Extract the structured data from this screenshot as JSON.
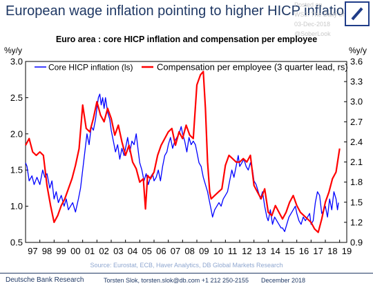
{
  "headline": "European wage inflation pointing to higher HICP inflation",
  "watermark": {
    "line1": "Posted on",
    "line2": "WSJ: The Daily Shot",
    "line3": "03-Dec-2018",
    "line4": "@SoberLook"
  },
  "logo_icon": "deutsche-bank-slash-logo",
  "footer": {
    "org": "Deutsche Bank Research",
    "contact": "Torsten Slok, torsten.slok@db.com  +1 212 250-2155",
    "date": "December 2018"
  },
  "colors": {
    "headline": "#1f3864",
    "core_line": "#0000ff",
    "comp_line": "#ff0000",
    "source": "#8ea6cf"
  },
  "chart_data": {
    "type": "line",
    "title": "Euro area : core HICP inflation and compensation per employee",
    "source": "Source: Eurostat, ECB, Haver Analytics, DB Global Markets Research",
    "left_axis": {
      "label": "%y/y",
      "range": [
        0.5,
        3.0
      ],
      "ticks": [
        "0.5",
        "1.0",
        "1.5",
        "2.0",
        "2.5",
        "3.0"
      ]
    },
    "right_axis": {
      "label": "%y/y",
      "range": [
        0.9,
        3.6
      ],
      "ticks": [
        "0.9",
        "1.2",
        "1.5",
        "1.8",
        "2.1",
        "2.4",
        "2.7",
        "3.0",
        "3.3",
        "3.6"
      ]
    },
    "x_axis": {
      "range": [
        1997,
        2019.5
      ],
      "ticks": [
        "97",
        "98",
        "99",
        "00",
        "01",
        "02",
        "03",
        "04",
        "05",
        "06",
        "07",
        "08",
        "09",
        "10",
        "11",
        "12",
        "13",
        "14",
        "15",
        "16",
        "17",
        "18",
        "19"
      ]
    },
    "grid": false,
    "legend": "top",
    "series": [
      {
        "name": "Core HICP inflation (ls)",
        "axis": "left",
        "points": [
          [
            1997.0,
            1.6
          ],
          [
            1997.1,
            1.55
          ],
          [
            1997.25,
            1.35
          ],
          [
            1997.45,
            1.42
          ],
          [
            1997.6,
            1.3
          ],
          [
            1997.8,
            1.4
          ],
          [
            1998.0,
            1.3
          ],
          [
            1998.2,
            1.5
          ],
          [
            1998.35,
            1.4
          ],
          [
            1998.5,
            1.45
          ],
          [
            1998.7,
            1.25
          ],
          [
            1998.85,
            1.35
          ],
          [
            1999.0,
            1.1
          ],
          [
            1999.15,
            1.2
          ],
          [
            1999.3,
            1.05
          ],
          [
            1999.5,
            1.15
          ],
          [
            1999.7,
            1.0
          ],
          [
            1999.85,
            1.1
          ],
          [
            2000.0,
            0.95
          ],
          [
            2000.15,
            1.0
          ],
          [
            2000.3,
            1.05
          ],
          [
            2000.5,
            0.92
          ],
          [
            2000.7,
            1.1
          ],
          [
            2000.85,
            1.25
          ],
          [
            2001.0,
            1.5
          ],
          [
            2001.15,
            1.75
          ],
          [
            2001.3,
            2.0
          ],
          [
            2001.45,
            1.85
          ],
          [
            2001.6,
            2.1
          ],
          [
            2001.75,
            2.05
          ],
          [
            2001.9,
            2.2
          ],
          [
            2002.0,
            2.35
          ],
          [
            2002.1,
            2.5
          ],
          [
            2002.2,
            2.55
          ],
          [
            2002.3,
            2.4
          ],
          [
            2002.4,
            2.5
          ],
          [
            2002.5,
            2.35
          ],
          [
            2002.6,
            2.5
          ],
          [
            2002.75,
            2.3
          ],
          [
            2002.9,
            2.2
          ],
          [
            2003.0,
            2.05
          ],
          [
            2003.15,
            1.9
          ],
          [
            2003.3,
            1.75
          ],
          [
            2003.45,
            1.85
          ],
          [
            2003.6,
            1.65
          ],
          [
            2003.75,
            1.8
          ],
          [
            2003.9,
            1.7
          ],
          [
            2004.0,
            1.8
          ],
          [
            2004.15,
            1.95
          ],
          [
            2004.3,
            1.75
          ],
          [
            2004.45,
            1.9
          ],
          [
            2004.6,
            1.85
          ],
          [
            2004.75,
            2.0
          ],
          [
            2004.9,
            1.75
          ],
          [
            2005.0,
            1.6
          ],
          [
            2005.15,
            1.5
          ],
          [
            2005.3,
            1.35
          ],
          [
            2005.45,
            1.45
          ],
          [
            2005.6,
            1.3
          ],
          [
            2005.75,
            1.4
          ],
          [
            2005.9,
            1.45
          ],
          [
            2006.0,
            1.35
          ],
          [
            2006.15,
            1.4
          ],
          [
            2006.3,
            1.5
          ],
          [
            2006.45,
            1.35
          ],
          [
            2006.6,
            1.55
          ],
          [
            2006.75,
            1.7
          ],
          [
            2006.9,
            1.75
          ],
          [
            2007.0,
            1.85
          ],
          [
            2007.15,
            1.95
          ],
          [
            2007.3,
            1.8
          ],
          [
            2007.45,
            1.9
          ],
          [
            2007.6,
            1.95
          ],
          [
            2007.75,
            2.0
          ],
          [
            2007.9,
            2.1
          ],
          [
            2008.0,
            2.0
          ],
          [
            2008.15,
            1.9
          ],
          [
            2008.3,
            1.75
          ],
          [
            2008.45,
            1.95
          ],
          [
            2008.6,
            1.85
          ],
          [
            2008.75,
            1.9
          ],
          [
            2008.9,
            1.85
          ],
          [
            2009.0,
            1.75
          ],
          [
            2009.15,
            1.6
          ],
          [
            2009.3,
            1.55
          ],
          [
            2009.45,
            1.4
          ],
          [
            2009.6,
            1.3
          ],
          [
            2009.75,
            1.2
          ],
          [
            2009.9,
            1.05
          ],
          [
            2010.0,
            0.95
          ],
          [
            2010.1,
            0.85
          ],
          [
            2010.25,
            0.95
          ],
          [
            2010.4,
            1.0
          ],
          [
            2010.55,
            1.05
          ],
          [
            2010.7,
            1.0
          ],
          [
            2010.85,
            1.1
          ],
          [
            2011.0,
            1.15
          ],
          [
            2011.15,
            1.2
          ],
          [
            2011.3,
            1.35
          ],
          [
            2011.45,
            1.5
          ],
          [
            2011.6,
            1.4
          ],
          [
            2011.75,
            1.55
          ],
          [
            2011.9,
            1.7
          ],
          [
            2012.0,
            1.55
          ],
          [
            2012.15,
            1.6
          ],
          [
            2012.3,
            1.65
          ],
          [
            2012.45,
            1.55
          ],
          [
            2012.6,
            1.5
          ],
          [
            2012.75,
            1.6
          ],
          [
            2012.9,
            1.5
          ],
          [
            2013.0,
            1.35
          ],
          [
            2013.15,
            1.3
          ],
          [
            2013.3,
            1.2
          ],
          [
            2013.45,
            1.1
          ],
          [
            2013.6,
            1.2
          ],
          [
            2013.75,
            1.0
          ],
          [
            2013.9,
            0.85
          ],
          [
            2014.0,
            0.8
          ],
          [
            2014.15,
            0.95
          ],
          [
            2014.3,
            0.75
          ],
          [
            2014.45,
            0.85
          ],
          [
            2014.6,
            0.8
          ],
          [
            2014.75,
            0.75
          ],
          [
            2014.9,
            0.7
          ],
          [
            2015.0,
            0.7
          ],
          [
            2015.15,
            0.65
          ],
          [
            2015.3,
            0.75
          ],
          [
            2015.45,
            0.85
          ],
          [
            2015.6,
            0.9
          ],
          [
            2015.75,
            0.95
          ],
          [
            2015.9,
            1.0
          ],
          [
            2016.0,
            0.9
          ],
          [
            2016.15,
            0.8
          ],
          [
            2016.3,
            0.75
          ],
          [
            2016.45,
            0.85
          ],
          [
            2016.6,
            0.8
          ],
          [
            2016.75,
            0.85
          ],
          [
            2016.9,
            0.9
          ],
          [
            2017.0,
            0.75
          ],
          [
            2017.15,
            0.8
          ],
          [
            2017.3,
            1.05
          ],
          [
            2017.45,
            1.2
          ],
          [
            2017.6,
            1.15
          ],
          [
            2017.75,
            0.9
          ],
          [
            2017.9,
            0.95
          ],
          [
            2018.0,
            1.0
          ],
          [
            2018.15,
            0.85
          ],
          [
            2018.3,
            1.1
          ],
          [
            2018.45,
            0.95
          ],
          [
            2018.6,
            1.2
          ],
          [
            2018.75,
            1.1
          ],
          [
            2018.85,
            0.95
          ],
          [
            2018.92,
            1.05
          ]
        ]
      },
      {
        "name": "Compensation per employee (3 quarter lead, rs)",
        "axis": "right",
        "points": [
          [
            1997.0,
            2.35
          ],
          [
            1997.25,
            2.45
          ],
          [
            1997.5,
            2.25
          ],
          [
            1997.75,
            2.2
          ],
          [
            1998.0,
            2.25
          ],
          [
            1998.25,
            2.2
          ],
          [
            1998.5,
            1.75
          ],
          [
            1998.75,
            1.45
          ],
          [
            1999.0,
            1.2
          ],
          [
            1999.25,
            1.3
          ],
          [
            1999.5,
            1.45
          ],
          [
            1999.75,
            1.55
          ],
          [
            2000.0,
            1.7
          ],
          [
            2000.25,
            1.85
          ],
          [
            2000.5,
            2.05
          ],
          [
            2000.75,
            2.3
          ],
          [
            2001.0,
            2.95
          ],
          [
            2001.25,
            2.6
          ],
          [
            2001.5,
            2.55
          ],
          [
            2001.75,
            2.75
          ],
          [
            2002.0,
            3.0
          ],
          [
            2002.25,
            2.8
          ],
          [
            2002.5,
            2.7
          ],
          [
            2002.75,
            2.9
          ],
          [
            2003.0,
            2.75
          ],
          [
            2003.25,
            2.5
          ],
          [
            2003.5,
            2.65
          ],
          [
            2003.75,
            2.4
          ],
          [
            2004.0,
            2.2
          ],
          [
            2004.25,
            2.35
          ],
          [
            2004.5,
            2.1
          ],
          [
            2004.75,
            2.0
          ],
          [
            2005.0,
            1.8
          ],
          [
            2005.25,
            1.85
          ],
          [
            2005.4,
            1.4
          ],
          [
            2005.55,
            1.9
          ],
          [
            2005.75,
            1.85
          ],
          [
            2006.0,
            1.95
          ],
          [
            2006.25,
            2.2
          ],
          [
            2006.5,
            2.35
          ],
          [
            2006.75,
            2.45
          ],
          [
            2007.0,
            2.55
          ],
          [
            2007.25,
            2.6
          ],
          [
            2007.5,
            2.35
          ],
          [
            2007.75,
            2.55
          ],
          [
            2008.0,
            2.45
          ],
          [
            2008.25,
            2.65
          ],
          [
            2008.5,
            2.5
          ],
          [
            2008.75,
            2.45
          ],
          [
            2009.0,
            3.25
          ],
          [
            2009.25,
            3.4
          ],
          [
            2009.45,
            3.45
          ],
          [
            2009.6,
            2.9
          ],
          [
            2009.75,
            2.1
          ],
          [
            2009.9,
            1.65
          ],
          [
            2010.0,
            1.55
          ],
          [
            2010.25,
            1.6
          ],
          [
            2010.5,
            1.65
          ],
          [
            2010.75,
            1.7
          ],
          [
            2011.0,
            2.05
          ],
          [
            2011.25,
            2.2
          ],
          [
            2011.5,
            2.15
          ],
          [
            2011.75,
            2.1
          ],
          [
            2012.0,
            2.1
          ],
          [
            2012.25,
            2.15
          ],
          [
            2012.5,
            2.1
          ],
          [
            2012.75,
            2.2
          ],
          [
            2013.0,
            1.75
          ],
          [
            2013.25,
            1.65
          ],
          [
            2013.5,
            1.55
          ],
          [
            2013.75,
            1.7
          ],
          [
            2014.0,
            1.35
          ],
          [
            2014.25,
            1.3
          ],
          [
            2014.5,
            1.45
          ],
          [
            2014.75,
            1.35
          ],
          [
            2015.0,
            1.25
          ],
          [
            2015.25,
            1.35
          ],
          [
            2015.5,
            1.5
          ],
          [
            2015.75,
            1.6
          ],
          [
            2016.0,
            1.45
          ],
          [
            2016.25,
            1.35
          ],
          [
            2016.5,
            1.3
          ],
          [
            2016.75,
            1.25
          ],
          [
            2017.0,
            1.2
          ],
          [
            2017.25,
            1.1
          ],
          [
            2017.5,
            1.05
          ],
          [
            2017.75,
            1.25
          ],
          [
            2018.0,
            1.5
          ],
          [
            2018.25,
            1.65
          ],
          [
            2018.5,
            1.85
          ],
          [
            2018.75,
            1.95
          ],
          [
            2019.0,
            2.3
          ]
        ]
      }
    ]
  }
}
